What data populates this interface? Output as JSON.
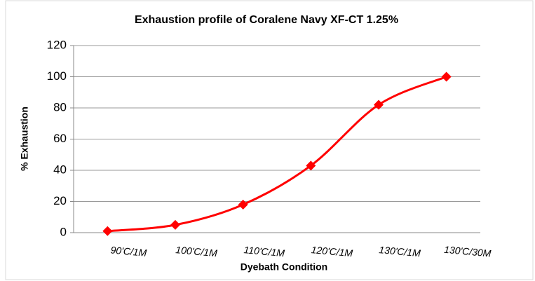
{
  "chart_data": {
    "type": "line",
    "title": "Exhaustion profile of Coralene Navy XF-CT  1.25%",
    "xlabel": "Dyebath Condition",
    "ylabel": "% Exhaustion",
    "categories": [
      "90'C/1M",
      "100'C/1M",
      "110'C/1M",
      "120'C/1M",
      "130'C/1M",
      "130'C/30M"
    ],
    "values": [
      1,
      5,
      18,
      43,
      82,
      100
    ],
    "color": "#ff0000",
    "ylim": [
      0,
      120
    ],
    "yticks": [
      0,
      20,
      40,
      60,
      80,
      100,
      120
    ],
    "grid": true,
    "smooth": true
  }
}
